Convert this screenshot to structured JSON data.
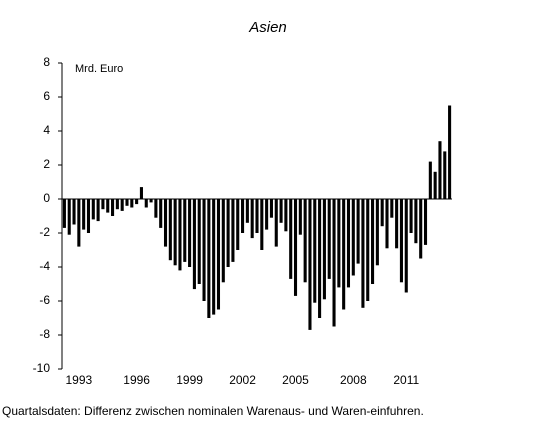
{
  "chart_data": {
    "type": "bar",
    "title": "Asien",
    "y_label": "Mrd. Euro",
    "note": "Quartalsdaten: Differenz zwischen nominalen Warenaus- und Waren-einfuhren.",
    "color": "#000000",
    "ylim": [
      -10,
      8
    ],
    "yticks": [
      -10,
      -8,
      -6,
      -4,
      -2,
      0,
      2,
      4,
      6,
      8
    ],
    "categories": [
      null,
      null,
      null,
      "1993",
      null,
      null,
      null,
      null,
      null,
      null,
      null,
      null,
      null,
      null,
      null,
      "1996",
      null,
      null,
      null,
      null,
      null,
      null,
      null,
      null,
      null,
      null,
      "1999",
      null,
      null,
      null,
      null,
      null,
      null,
      null,
      null,
      null,
      null,
      "2002",
      null,
      null,
      null,
      null,
      null,
      null,
      null,
      null,
      null,
      null,
      "2005",
      null,
      null,
      null,
      null,
      null,
      null,
      null,
      null,
      null,
      null,
      null,
      "2008",
      null,
      null,
      null,
      null,
      null,
      null,
      null,
      null,
      null,
      null,
      "2011",
      null,
      null,
      null,
      null,
      null,
      null,
      null,
      null,
      null
    ],
    "values": [
      -1.7,
      -2.1,
      -1.5,
      -2.8,
      -1.8,
      -2.0,
      -1.2,
      -1.3,
      -0.6,
      -0.8,
      -1.0,
      -0.6,
      -0.7,
      -0.4,
      -0.5,
      -0.3,
      0.7,
      -0.5,
      -0.2,
      -1.1,
      -1.7,
      -2.8,
      -3.6,
      -3.9,
      -4.2,
      -3.7,
      -4.0,
      -5.3,
      -5.0,
      -6.0,
      -7.0,
      -6.8,
      -6.5,
      -4.9,
      -4.0,
      -3.7,
      -3.0,
      -2.0,
      -1.4,
      -2.3,
      -2.0,
      -3.0,
      -1.8,
      -1.1,
      -2.8,
      -1.4,
      -1.9,
      -4.7,
      -5.7,
      -2.1,
      -4.9,
      -7.7,
      -6.1,
      -7.0,
      -5.9,
      -4.7,
      -7.5,
      -5.2,
      -6.5,
      -5.2,
      -4.5,
      -3.8,
      -6.4,
      -6.0,
      -5.0,
      -3.9,
      -1.6,
      -2.9,
      -1.1,
      -2.9,
      -4.9,
      -5.5,
      -2.0,
      -2.6,
      -3.5,
      -2.7,
      2.2,
      1.6,
      3.4,
      2.8,
      5.5
    ]
  }
}
